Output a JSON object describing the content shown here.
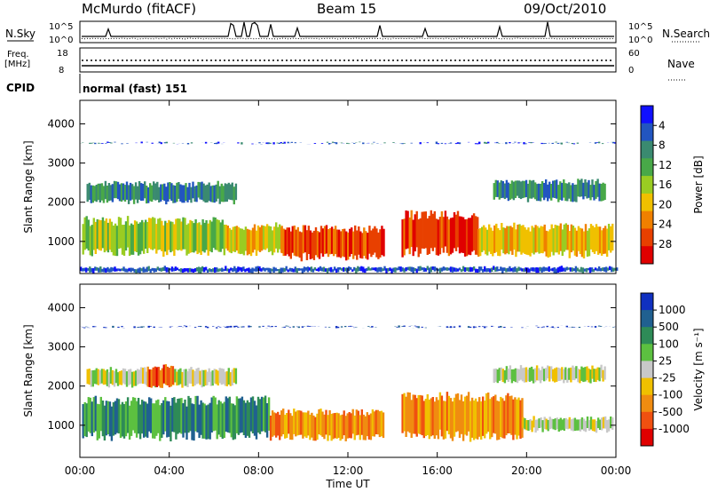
{
  "header": {
    "station": "McMurdo (fitACF)",
    "beam": "Beam 15",
    "date": "09/Oct/2010"
  },
  "summary": {
    "nsky_label": "N.Sky",
    "nsky_ticks": [
      "10^5",
      "10^0"
    ],
    "nsearch_label": "N.Search",
    "nsearch_ticks": [
      "10^5",
      "10^0"
    ],
    "freq_label": "Freq.",
    "freq_unit": "[MHz]",
    "freq_ticks": [
      "18",
      "8"
    ],
    "nave_label": "Nave",
    "nave_ticks": [
      "60",
      "0"
    ],
    "cpid_label": "CPID",
    "cpid_value": "normal (fast) 151"
  },
  "x_axis": {
    "label": "Time UT",
    "ticks": [
      "00:00",
      "04:00",
      "08:00",
      "12:00",
      "16:00",
      "20:00",
      "00:00"
    ]
  },
  "chart_data": [
    {
      "type": "heatmap",
      "ylabel": "Slant Range [km]",
      "xlabel": "Time UT",
      "y_ticks": [
        1000,
        2000,
        3000,
        4000
      ],
      "ylim": [
        180,
        4600
      ],
      "xlim_hours": [
        0,
        24
      ],
      "colorbar": {
        "label": "Power [dB]",
        "ticks": [
          "4",
          "8",
          "12",
          "16",
          "20",
          "24",
          "28"
        ],
        "colors": [
          "#1010ff",
          "#2255c0",
          "#3a8a70",
          "#48a848",
          "#9acc22",
          "#f0c000",
          "#f08000",
          "#e84000",
          "#e00000"
        ]
      },
      "bands": [
        {
          "t0": 0.0,
          "t1": 24.0,
          "r0": 3480,
          "r1": 3540,
          "level": 1
        },
        {
          "t0": 0.3,
          "t1": 7.0,
          "r0": 2000,
          "r1": 2500,
          "level": 2
        },
        {
          "t0": 18.5,
          "t1": 23.5,
          "r0": 2050,
          "r1": 2550,
          "level": 2
        },
        {
          "t0": 0.1,
          "t1": 6.5,
          "r0": 700,
          "r1": 1550,
          "level": 4
        },
        {
          "t0": 6.5,
          "t1": 9.0,
          "r0": 700,
          "r1": 1400,
          "level": 5
        },
        {
          "t0": 9.0,
          "t1": 13.6,
          "r0": 580,
          "r1": 1350,
          "level": 7
        },
        {
          "t0": 14.4,
          "t1": 17.8,
          "r0": 700,
          "r1": 1700,
          "level": 7
        },
        {
          "t0": 17.8,
          "t1": 23.8,
          "r0": 650,
          "r1": 1400,
          "level": 5
        },
        {
          "t0": 0.0,
          "t1": 24.0,
          "r0": 200,
          "r1": 360,
          "level": 1
        }
      ]
    },
    {
      "type": "heatmap",
      "ylabel": "Slant Range [km]",
      "xlabel": "Time UT",
      "y_ticks": [
        1000,
        2000,
        3000,
        4000
      ],
      "ylim": [
        180,
        4600
      ],
      "xlim_hours": [
        0,
        24
      ],
      "colorbar": {
        "label": "Velocity [m s⁻¹]",
        "ticks": [
          "1000",
          "500",
          "100",
          "25",
          "-25",
          "-100",
          "-500",
          "-1000"
        ],
        "colors": [
          "#1030c0",
          "#206090",
          "#2e8b57",
          "#5cc040",
          "#c8c8c8",
          "#f0c000",
          "#f08c10",
          "#f05010",
          "#e00000"
        ]
      },
      "bands": [
        {
          "t0": 0.0,
          "t1": 24.0,
          "r0": 3480,
          "r1": 3540,
          "level": 0
        },
        {
          "t0": 0.3,
          "t1": 7.0,
          "r0": 2000,
          "r1": 2450,
          "level": 4
        },
        {
          "t0": 3.0,
          "t1": 4.2,
          "r0": 1950,
          "r1": 2500,
          "level": 7
        },
        {
          "t0": 18.5,
          "t1": 23.5,
          "r0": 2100,
          "r1": 2500,
          "level": 4
        },
        {
          "t0": 0.1,
          "t1": 8.5,
          "r0": 700,
          "r1": 1650,
          "level": 2
        },
        {
          "t0": 8.5,
          "t1": 13.6,
          "r0": 650,
          "r1": 1350,
          "level": 6
        },
        {
          "t0": 14.4,
          "t1": 19.8,
          "r0": 700,
          "r1": 1750,
          "level": 6
        },
        {
          "t0": 19.8,
          "t1": 23.8,
          "r0": 850,
          "r1": 1200,
          "level": 4
        }
      ]
    }
  ]
}
